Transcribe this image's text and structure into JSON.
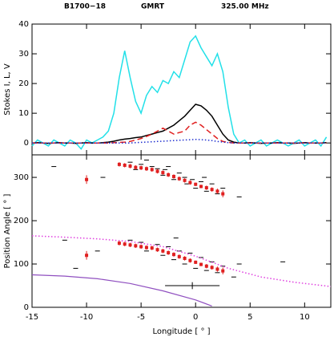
{
  "header": [
    "B1700−18",
    "GMRT",
    "325.00 MHz"
  ],
  "chart_data": [
    {
      "type": "line",
      "ylabel": "Stokes I, L, V",
      "xlim": [
        -15,
        12.4
      ],
      "ylim": [
        -4,
        40
      ],
      "xticks": [
        -15,
        -10,
        -5,
        0,
        5,
        10
      ],
      "yticks": [
        0,
        10,
        20,
        30,
        40
      ],
      "x": [
        -15,
        -14.5,
        -14,
        -13.5,
        -13,
        -12.5,
        -12,
        -11.5,
        -11,
        -10.5,
        -10,
        -9.5,
        -9,
        -8.5,
        -8,
        -7.5,
        -7,
        -6.5,
        -6,
        -5.5,
        -5,
        -4.5,
        -4,
        -3.5,
        -3,
        -2.5,
        -2,
        -1.5,
        -1,
        -0.5,
        0,
        0.5,
        1,
        1.5,
        2,
        2.5,
        3,
        3.5,
        4,
        4.5,
        5,
        5.5,
        6,
        6.5,
        7,
        7.5,
        8,
        8.5,
        9,
        9.5,
        10,
        10.5,
        11,
        11.5,
        12
      ],
      "series": [
        {
          "color": "#22e0e8",
          "style": "solid",
          "values": [
            -1,
            1,
            0,
            -1,
            1,
            0,
            -1,
            1,
            0,
            -2,
            1,
            0,
            1,
            2,
            4,
            10,
            22,
            31,
            22,
            14,
            10,
            16,
            19,
            17,
            21,
            20,
            24,
            22,
            28,
            34,
            36,
            32,
            29,
            26,
            30,
            24,
            12,
            3,
            0,
            1,
            -1,
            0,
            1,
            -1,
            0,
            1,
            0,
            -1,
            0,
            1,
            -1,
            0,
            1,
            -1,
            2
          ]
        },
        {
          "color": "#000000",
          "style": "solid",
          "values": [
            0,
            0.1,
            0,
            -0.1,
            0,
            0.1,
            0,
            0,
            -0.1,
            0,
            0.1,
            0,
            0,
            0.1,
            0.3,
            0.6,
            1,
            1.3,
            1.5,
            1.8,
            2,
            2.5,
            3,
            3.5,
            4,
            5,
            6,
            7.5,
            9,
            11,
            13,
            12.5,
            11,
            9,
            6,
            3,
            1,
            0.3,
            0,
            0,
            0.1,
            0,
            -0.1,
            0,
            0,
            0.1,
            0,
            0,
            -0.1,
            0,
            0.1,
            0,
            0,
            0,
            0.1
          ]
        },
        {
          "color": "#e02020",
          "style": "dashed",
          "values": [
            0,
            0,
            0,
            0,
            0,
            0,
            0,
            0,
            0,
            0,
            0,
            0,
            0,
            0,
            0,
            0.1,
            0.2,
            0.3,
            0.5,
            1,
            1.5,
            2.2,
            3,
            4,
            5,
            4,
            3,
            3.5,
            4,
            6,
            7,
            6,
            4.5,
            3,
            1.5,
            0.5,
            0.2,
            0,
            0,
            0,
            0,
            0,
            0,
            0,
            0,
            0,
            0,
            0,
            0,
            0,
            0,
            0,
            0,
            0,
            0
          ]
        },
        {
          "color": "#2030d0",
          "style": "dotted",
          "values": [
            0,
            0,
            0,
            0,
            0,
            0,
            0,
            0,
            0,
            0,
            0,
            0,
            0,
            0,
            0,
            0,
            0,
            0,
            0,
            0.1,
            0.2,
            0.3,
            0.4,
            0.5,
            0.6,
            0.7,
            0.8,
            0.9,
            1,
            1.1,
            1.2,
            1.1,
            1,
            0.8,
            0.5,
            0.3,
            0.1,
            0,
            0,
            0,
            0,
            0,
            0,
            0,
            0,
            0,
            0,
            0,
            0,
            0,
            0,
            0,
            0,
            0,
            0
          ]
        }
      ]
    },
    {
      "type": "scatter",
      "xlabel": "Longitude [ ° ]",
      "ylabel": "Position Angle [ ° ]",
      "xlim": [
        -15,
        12.4
      ],
      "ylim": [
        0,
        352
      ],
      "xticks": [
        -15,
        -10,
        -5,
        0,
        5,
        10
      ],
      "yticks": [
        0,
        100,
        200,
        300
      ],
      "dashes": {
        "color": "#000000",
        "x": [
          -6,
          -5.5,
          -5,
          -4,
          -3.5,
          -3,
          -2.8,
          -2,
          -1.5,
          -1,
          -0.8,
          -0.3,
          0,
          0.5,
          1,
          1.5,
          2,
          2.5,
          -4.5,
          -2.5,
          -13,
          4,
          -8.5,
          0.8,
          -6,
          -5,
          -4.5,
          -3.5,
          -3,
          -2.5,
          -2,
          -1.5,
          -1,
          -0.5,
          0,
          0.5,
          1,
          1.5,
          2,
          2.5,
          -1.8,
          3.5,
          -9,
          -12,
          -11,
          8,
          4
        ],
        "values": [
          335,
          318,
          330,
          325,
          320,
          305,
          318,
          295,
          310,
          300,
          285,
          295,
          275,
          290,
          268,
          285,
          262,
          275,
          340,
          325,
          325,
          255,
          300,
          300,
          155,
          150,
          130,
          145,
          120,
          140,
          110,
          130,
          100,
          125,
          90,
          115,
          85,
          105,
          80,
          95,
          160,
          70,
          130,
          155,
          90,
          105,
          100
        ]
      },
      "points": {
        "color": "#e02020",
        "x": [
          -10,
          -10,
          -7,
          -6.5,
          -6,
          -5.5,
          -5,
          -4.5,
          -4,
          -3.5,
          -3,
          -2.5,
          -2,
          -1.5,
          -1,
          -0.5,
          0,
          0.5,
          1,
          1.5,
          2,
          2.5,
          -7,
          -6.5,
          -6,
          -5.5,
          -5,
          -4.5,
          -4,
          -3.5,
          -3,
          -2.5,
          -2,
          -1.5,
          -1,
          -0.5,
          0,
          0.5,
          1,
          1.5,
          2,
          2.5
        ],
        "values": [
          295,
          120,
          330,
          328,
          326,
          323,
          322,
          320,
          318,
          314,
          311,
          306,
          302,
          297,
          293,
          288,
          284,
          279,
          276,
          272,
          268,
          262,
          148,
          146,
          144,
          142,
          140,
          138,
          137,
          133,
          130,
          126,
          122,
          117,
          113,
          108,
          104,
          99,
          95,
          92,
          88,
          84
        ],
        "errors": [
          10,
          10,
          5,
          5,
          5,
          5,
          5,
          5,
          5,
          5,
          5,
          5,
          5,
          5,
          5,
          5,
          4,
          4,
          5,
          5,
          6,
          8,
          5,
          5,
          5,
          5,
          5,
          5,
          5,
          5,
          5,
          5,
          5,
          5,
          5,
          5,
          4,
          4,
          5,
          5,
          6,
          8
        ]
      },
      "fit": {
        "color": "#e040e0",
        "x": [
          -15,
          -12,
          -9,
          -6,
          -3,
          0,
          3,
          6,
          9,
          12.4
        ],
        "values": [
          165,
          162,
          158,
          152,
          140,
          118,
          90,
          70,
          58,
          48
        ]
      },
      "fit2": {
        "color": "#9050c0",
        "x": [
          -15,
          -12,
          -9,
          -6,
          -3,
          0,
          1.5
        ],
        "values": [
          75,
          72,
          66,
          55,
          38,
          17,
          3
        ]
      },
      "errbar": {
        "color": "#000000",
        "x": -0.3,
        "value": 50,
        "xerr": 2.5,
        "yerr": 8
      }
    }
  ]
}
